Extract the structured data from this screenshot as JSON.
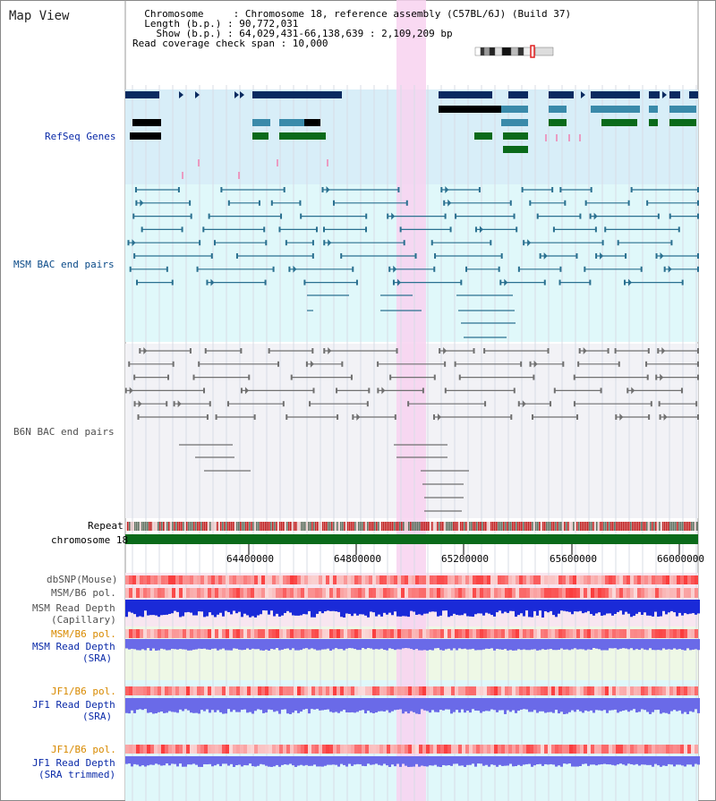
{
  "app": {
    "title": "Map View"
  },
  "info": {
    "lines": [
      "  Chromosome     : Chromosome 18, reference assembly (C57BL/6J) (Build 37)",
      "  Length (b.p.) : 90,772,031",
      "    Show (b.p.) : 64,029,431-66,138,639 : 2,109,209 bp",
      "Read coverage check span : 10,000"
    ]
  },
  "tracks": {
    "refseq": "RefSeq Genes",
    "msm_bac": "MSM BAC end pairs",
    "b6n_bac": "B6N BAC end pairs",
    "repeat": "Repeat",
    "chromosome": "chromosome 18",
    "dbsnp": "dbSNP(Mouse)",
    "msm_b6_pol_1": "MSM/B6 pol.",
    "msm_depth_cap_1": "MSM Read Depth",
    "msm_depth_cap_2": "(Capillary)",
    "msm_b6_pol_2": "MSM/B6 pol.",
    "msm_depth_sra_1": "MSM Read Depth",
    "msm_depth_sra_2": "(SRA)",
    "jf1_b6_pol_1": "JF1/B6 pol.",
    "jf1_depth_sra_1": "JF1 Read Depth",
    "jf1_depth_sra_2": "(SRA)",
    "jf1_b6_pol_2": "JF1/B6 pol.",
    "jf1_depth_trim_1": "JF1 Read Depth",
    "jf1_depth_trim_2": "(SRA trimmed)"
  },
  "axis": {
    "ticks": [
      "64400000",
      "64800000",
      "65200000",
      "65600000",
      "66000000"
    ]
  },
  "colors": {
    "refseq_bg": "#d8eef8",
    "msm_bg": "#e0f8fa",
    "b6n_bg": "#f2f2f6",
    "highlight": "#f8d2f0",
    "msm_bac_line": "#2a7090",
    "b6n_bac_line": "#707070",
    "gene_dark": "#0a2a60",
    "gene_mid": "#3a8aaa",
    "gene_green": "#0a6a1a",
    "chrom_bar": "#0a6a1a",
    "depth_blue": "#1a2ad8",
    "depth_purple": "#6a6ae8",
    "label_blue": "#0a2aa8",
    "label_orange": "#d88a00"
  }
}
